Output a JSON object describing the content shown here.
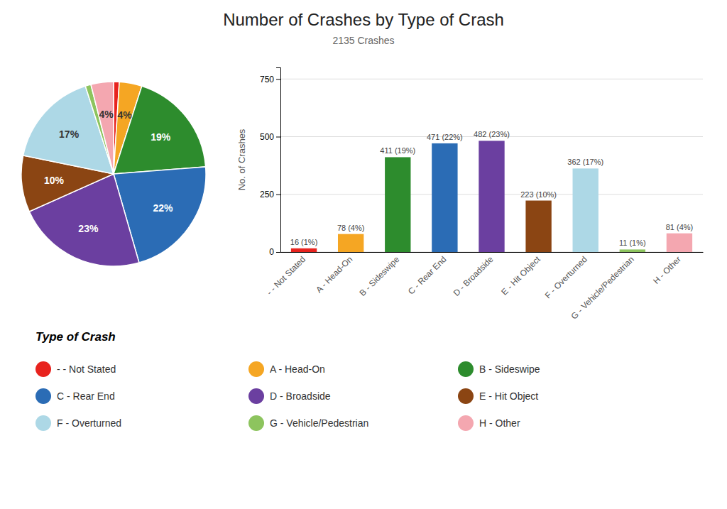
{
  "chart_data": [
    {
      "type": "pie",
      "title": "Number of Crashes by Type of Crash",
      "subtitle": "2135 Crashes",
      "categories": [
        "- - Not Stated",
        "A - Head-On",
        "B - Sideswipe",
        "C - Rear End",
        "D - Broadside",
        "E - Hit Object",
        "F - Overturned",
        "G - Vehicle/Pedestrian",
        "H - Other"
      ],
      "values": [
        1,
        4,
        19,
        22,
        23,
        10,
        17,
        1,
        4
      ],
      "value_labels": [
        null,
        "4%",
        "19%",
        "22%",
        "23%",
        "10%",
        "17%",
        null,
        "4%"
      ],
      "colors": [
        "#e8231e",
        "#f5a623",
        "#2d8c2d",
        "#2b6cb5",
        "#6b3fa0",
        "#8b4513",
        "#add8e6",
        "#8dc45e",
        "#f4a7b0"
      ],
      "data_labels": true,
      "legend": "bottom",
      "legend_title": "Type of Crash"
    },
    {
      "type": "bar",
      "categories": [
        "- - Not Stated",
        "A - Head-On",
        "B - Sideswipe",
        "C - Rear End",
        "D - Broadside",
        "E - Hit Object",
        "F - Overturned",
        "G - Vehicle/Pedestrian",
        "H - Other"
      ],
      "values": [
        16,
        78,
        411,
        471,
        482,
        223,
        362,
        11,
        81
      ],
      "value_labels": [
        "16 (1%)",
        "78 (4%)",
        "411 (19%)",
        "471 (22%)",
        "482 (23%)",
        "223 (10%)",
        "362 (17%)",
        "11 (1%)",
        "81 (4%)"
      ],
      "colors": [
        "#e8231e",
        "#f5a623",
        "#2d8c2d",
        "#2b6cb5",
        "#6b3fa0",
        "#8b4513",
        "#add8e6",
        "#8dc45e",
        "#f4a7b0"
      ],
      "ylabel": "No. of Crashes",
      "ylim": [
        0,
        800
      ],
      "yticks": [
        0,
        250,
        500,
        750
      ],
      "grid": true,
      "data_labels": true
    }
  ]
}
